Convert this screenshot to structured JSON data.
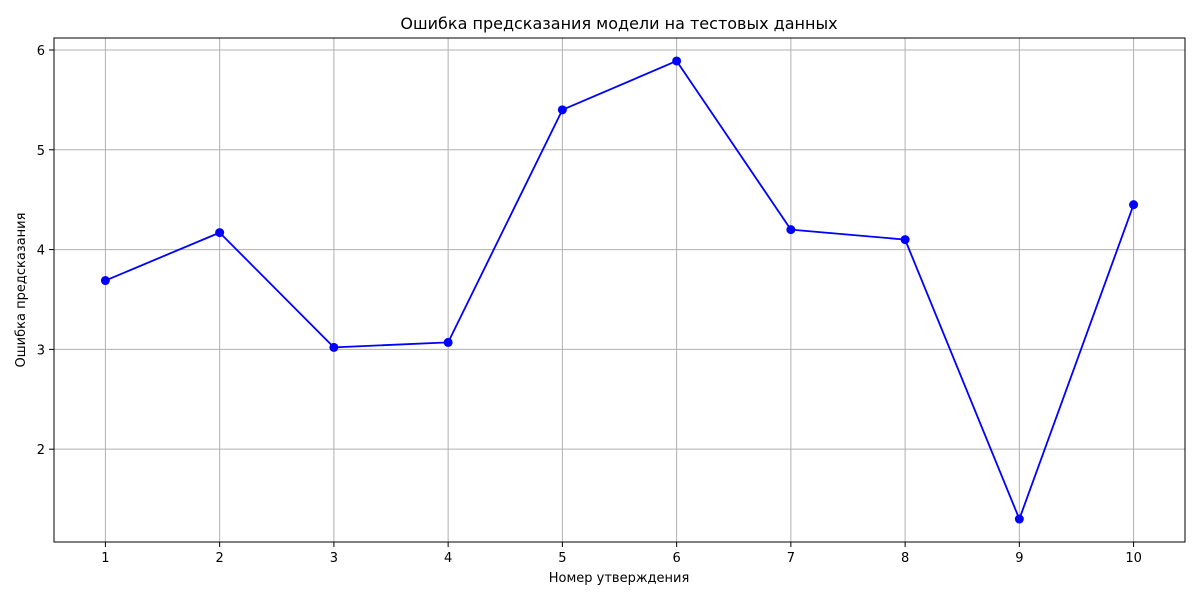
{
  "chart_data": {
    "type": "line",
    "title": "Ошибка предсказания модели на тестовых данных",
    "xlabel": "Номер утверждения",
    "ylabel": "Ошибка предсказания",
    "x": [
      1,
      2,
      3,
      4,
      5,
      6,
      7,
      8,
      9,
      10
    ],
    "series": [
      {
        "values": [
          3.69,
          4.17,
          3.02,
          3.07,
          5.4,
          5.89,
          4.2,
          4.1,
          1.3,
          4.45
        ],
        "color": "#0000ff",
        "marker": "circle"
      }
    ],
    "xticks": [
      "1",
      "2",
      "3",
      "4",
      "5",
      "6",
      "7",
      "8",
      "9",
      "10"
    ],
    "yticks": [
      "2",
      "3",
      "4",
      "5",
      "6"
    ],
    "xlim": [
      0.55,
      10.45
    ],
    "ylim": [
      1.07,
      6.12
    ],
    "grid": true
  }
}
